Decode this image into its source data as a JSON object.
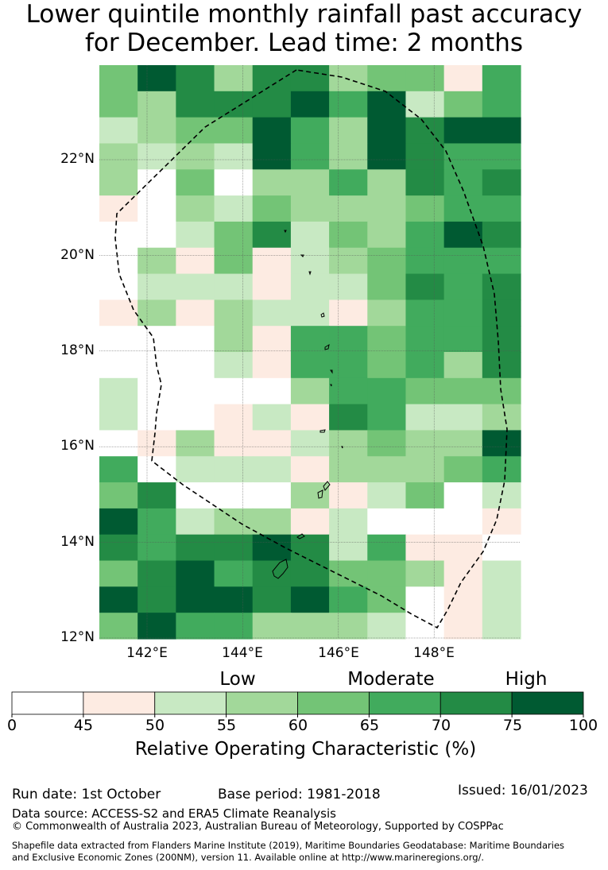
{
  "title_line1": "Lower quintile monthly rainfall past accuracy",
  "title_line2": "for December. Lead time: 2 months",
  "axes": {
    "lat_labels": [
      "22°N",
      "20°N",
      "18°N",
      "16°N",
      "14°N",
      "12°N"
    ],
    "lat_values": [
      22,
      20,
      18,
      16,
      14,
      12
    ],
    "lon_labels": [
      "142°E",
      "144°E",
      "146°E",
      "148°E"
    ],
    "lon_values": [
      142,
      144,
      146,
      148
    ],
    "lon_range": [
      141,
      149.8
    ],
    "lat_range": [
      12,
      24
    ]
  },
  "colorbar": {
    "categories": [
      "Low",
      "Moderate",
      "High"
    ],
    "ticks": [
      "0",
      "45",
      "50",
      "55",
      "60",
      "65",
      "70",
      "75",
      "100"
    ],
    "colors": [
      "#ffffff",
      "#fdebe2",
      "#c8e9c3",
      "#a2d89a",
      "#73c476",
      "#41ab5d",
      "#238b45",
      "#005a32"
    ],
    "label": "Relative Operating Characteristic (%)"
  },
  "map_data": {
    "note_levels": "0=0-45, 1=45-50, 2=50-55, 3=55-60, 4=60-65, 5=65-70, 6=70-75, 7=75-100",
    "rows_top_to_bottom": [
      [
        4,
        7,
        6,
        3,
        6,
        6,
        3,
        4,
        4,
        1,
        5
      ],
      [
        4,
        3,
        6,
        6,
        6,
        7,
        5,
        7,
        2,
        4,
        5
      ],
      [
        2,
        3,
        4,
        4,
        7,
        5,
        3,
        7,
        6,
        7,
        7
      ],
      [
        3,
        2,
        3,
        2,
        7,
        5,
        3,
        7,
        6,
        5,
        5
      ],
      [
        3,
        0,
        4,
        0,
        3,
        3,
        5,
        3,
        6,
        5,
        6
      ],
      [
        1,
        0,
        3,
        2,
        4,
        3,
        3,
        3,
        4,
        5,
        5
      ],
      [
        0,
        0,
        2,
        4,
        6,
        2,
        4,
        3,
        5,
        7,
        6
      ],
      [
        0,
        3,
        1,
        4,
        1,
        2,
        3,
        4,
        5,
        5,
        5
      ],
      [
        0,
        2,
        2,
        2,
        1,
        2,
        2,
        4,
        6,
        5,
        6
      ],
      [
        1,
        3,
        1,
        3,
        2,
        2,
        1,
        3,
        5,
        5,
        6
      ],
      [
        0,
        0,
        0,
        3,
        1,
        5,
        5,
        4,
        5,
        5,
        6
      ],
      [
        0,
        0,
        0,
        2,
        1,
        5,
        5,
        4,
        5,
        3,
        6
      ],
      [
        2,
        0,
        0,
        0,
        0,
        3,
        5,
        5,
        4,
        4,
        4
      ],
      [
        2,
        0,
        0,
        1,
        2,
        1,
        6,
        5,
        2,
        2,
        3
      ],
      [
        0,
        1,
        3,
        1,
        1,
        2,
        3,
        4,
        3,
        3,
        7
      ],
      [
        5,
        0,
        2,
        2,
        2,
        1,
        3,
        3,
        3,
        4,
        5
      ],
      [
        4,
        6,
        0,
        0,
        0,
        3,
        1,
        2,
        4,
        0,
        2
      ],
      [
        7,
        5,
        2,
        3,
        3,
        1,
        2,
        0,
        0,
        0,
        1
      ],
      [
        6,
        5,
        6,
        6,
        7,
        6,
        2,
        5,
        1,
        1,
        0
      ],
      [
        4,
        6,
        7,
        5,
        6,
        6,
        4,
        4,
        3,
        1,
        2
      ],
      [
        7,
        6,
        7,
        7,
        6,
        7,
        5,
        4,
        0,
        1,
        2
      ],
      [
        4,
        7,
        5,
        5,
        3,
        3,
        3,
        2,
        0,
        1,
        2
      ]
    ]
  },
  "footer": {
    "run_date": "Run date: 1st October",
    "base_period": "Base period: 1981-2018",
    "issued": "Issued: 16/01/2023",
    "data_source": "Data source: ACCESS-S2 and ERA5 Climate Reanalysis",
    "copyright": "© Commonwealth of Australia 2023, Australian Bureau of Meteorology, Supported by COSPPac",
    "shapefile_line1": "Shapefile data extracted from Flanders Marine Institute (2019), Maritime Boundaries Geodatabase: Maritime Boundaries",
    "shapefile_line2": "and Exclusive Economic Zones (200NM), version 11. Available online at http://www.marineregions.org/."
  }
}
